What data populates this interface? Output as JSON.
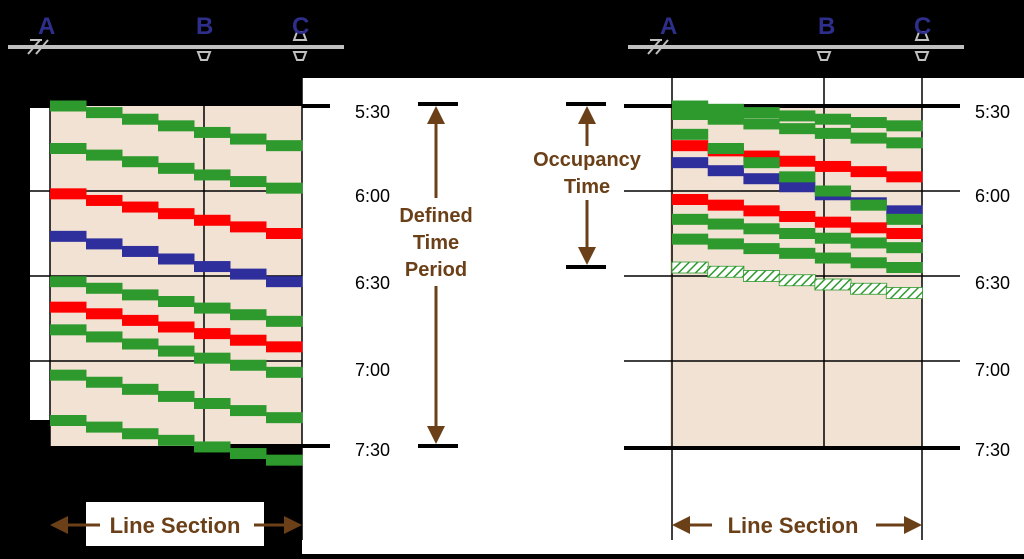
{
  "colors": {
    "background": "#000000",
    "white": "#ffffff",
    "beige": "#f2e2d4",
    "track": "#c0c0c0",
    "brown": "#6b4018",
    "station_text": "#2e2e8c",
    "green": "#2e9a2e",
    "red": "#ff0000",
    "blue": "#2e2e9c"
  },
  "stations": [
    "A",
    "B",
    "C"
  ],
  "time_labels": [
    "5:30",
    "6:00",
    "6:30",
    "7:00",
    "7:30"
  ],
  "left_panel": {
    "annotation_lines": [
      "Defined",
      "Time",
      "Period"
    ],
    "axis_label": "Line Section",
    "trains": [
      {
        "color": "green",
        "start_min": 0,
        "end_min": 14
      },
      {
        "color": "green",
        "start_min": 15,
        "end_min": 29
      },
      {
        "color": "red",
        "start_min": 31,
        "end_min": 45
      },
      {
        "color": "blue",
        "start_min": 46,
        "end_min": 62
      },
      {
        "color": "green",
        "start_min": 62,
        "end_min": 76
      },
      {
        "color": "red",
        "start_min": 71,
        "end_min": 85
      },
      {
        "color": "green",
        "start_min": 79,
        "end_min": 94
      },
      {
        "color": "green",
        "start_min": 95,
        "end_min": 110
      },
      {
        "color": "green",
        "start_min": 111,
        "end_min": 125
      }
    ]
  },
  "right_panel": {
    "annotation_lines": [
      "Occupancy",
      "Time"
    ],
    "axis_label": "Line Section",
    "trains": [
      {
        "color": "green",
        "start_min": 0,
        "end_min": 7
      },
      {
        "color": "green",
        "start_min": 3,
        "end_min": 13
      },
      {
        "color": "red",
        "start_min": 14,
        "end_min": 25
      },
      {
        "color": "blue",
        "start_min": 20,
        "end_min": 37
      },
      {
        "color": "green",
        "start_min": 10,
        "end_min": 40
      },
      {
        "color": "red",
        "start_min": 33,
        "end_min": 45
      },
      {
        "color": "green",
        "start_min": 40,
        "end_min": 50
      },
      {
        "color": "green",
        "start_min": 47,
        "end_min": 57
      },
      {
        "color": "hatched",
        "start_min": 57,
        "end_min": 66
      }
    ]
  }
}
